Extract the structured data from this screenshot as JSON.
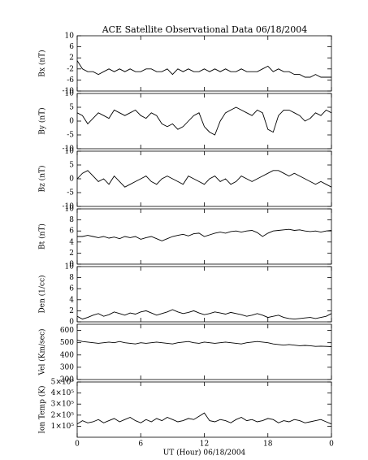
{
  "chart_data": [
    {
      "type": "line",
      "title": "ACE Satellite Observational Data   06/18/2004",
      "ylabel": "Bx (nT)",
      "x": [
        0,
        0.5,
        1,
        1.5,
        2,
        2.5,
        3,
        3.5,
        4,
        4.5,
        5,
        5.5,
        6,
        6.5,
        7,
        7.5,
        8,
        8.5,
        9,
        9.5,
        10,
        10.5,
        11,
        11.5,
        12,
        12.5,
        13,
        13.5,
        14,
        14.5,
        15,
        15.5,
        16,
        16.5,
        17,
        17.5,
        18,
        18.5,
        19,
        19.5,
        20,
        20.5,
        21,
        21.5,
        22,
        22.5,
        23,
        23.5,
        24
      ],
      "ylim": [
        -10,
        10
      ],
      "yticks": [
        -10,
        -6,
        -2,
        2,
        6,
        10
      ],
      "series": [
        {
          "color": "#000000",
          "values": [
            1,
            -2,
            -3,
            -3,
            -4,
            -3,
            -2,
            -3,
            -2,
            -3,
            -2,
            -3,
            -3,
            -2,
            -2,
            -3,
            -3,
            -2,
            -4,
            -2,
            -3,
            -2,
            -3,
            -3,
            -2,
            -3,
            -2,
            -3,
            -2,
            -3,
            -3,
            -2,
            -3,
            -3,
            -3,
            -2,
            -1,
            -3,
            -2,
            -3,
            -3,
            -4,
            -4,
            -5,
            -5,
            -4,
            -5,
            -5,
            -5
          ]
        }
      ]
    },
    {
      "type": "line",
      "ylabel": "By (nT)",
      "ylim": [
        -10,
        10
      ],
      "yticks": [
        -10,
        -5,
        0,
        5,
        10
      ],
      "series": [
        {
          "color": "#000000",
          "values": [
            3,
            2,
            -1,
            1,
            3,
            2,
            1,
            4,
            3,
            2,
            3,
            4,
            2,
            1,
            3,
            2,
            -1,
            -2,
            -1,
            -3,
            -2,
            0,
            2,
            3,
            -2,
            -4,
            -5,
            0,
            3,
            4,
            5,
            4,
            3,
            2,
            4,
            3,
            -3,
            -4,
            2,
            4,
            4,
            3,
            2,
            0,
            1,
            3,
            2,
            4,
            3
          ]
        }
      ]
    },
    {
      "type": "line",
      "ylabel": "Bz (nT)",
      "ylim": [
        -10,
        10
      ],
      "yticks": [
        -10,
        -5,
        0,
        5,
        10
      ],
      "series": [
        {
          "color": "#000000",
          "values": [
            0,
            2,
            3,
            1,
            -1,
            0,
            -2,
            1,
            -1,
            -3,
            -2,
            -1,
            0,
            1,
            -1,
            -2,
            0,
            1,
            0,
            -1,
            -2,
            1,
            0,
            -1,
            -2,
            0,
            1,
            -1,
            0,
            -2,
            -1,
            1,
            0,
            -1,
            0,
            1,
            2,
            3,
            3,
            2,
            1,
            2,
            1,
            0,
            -1,
            -2,
            -1,
            -2,
            -3
          ]
        }
      ]
    },
    {
      "type": "line",
      "ylabel": "Bt (nT)",
      "ylim": [
        0,
        10
      ],
      "yticks": [
        0,
        2,
        4,
        6,
        8,
        10
      ],
      "series": [
        {
          "color": "#000000",
          "values": [
            5,
            5,
            5.2,
            5,
            4.8,
            5,
            4.7,
            4.9,
            4.6,
            5,
            4.8,
            5,
            4.5,
            4.8,
            5,
            4.6,
            4.2,
            4.6,
            5,
            5.2,
            5.4,
            5.1,
            5.5,
            5.6,
            5,
            5.3,
            5.6,
            5.8,
            5.6,
            5.9,
            6,
            5.8,
            6,
            6.1,
            5.7,
            5,
            5.6,
            6,
            6.1,
            6.2,
            6.3,
            6.1,
            6.2,
            6,
            5.9,
            6,
            5.8,
            6,
            6.1
          ]
        }
      ]
    },
    {
      "type": "line",
      "ylabel": "Den (1/cc)",
      "ylim": [
        0,
        10
      ],
      "yticks": [
        0,
        2,
        4,
        6,
        8,
        10
      ],
      "series": [
        {
          "color": "#000000",
          "values": [
            1,
            0.5,
            0.8,
            1.2,
            1.5,
            1,
            1.3,
            1.8,
            1.5,
            1.2,
            1.6,
            1.4,
            1.8,
            2,
            1.6,
            1.2,
            1.5,
            1.8,
            2.2,
            1.8,
            1.5,
            1.7,
            2,
            1.6,
            1.3,
            1.5,
            1.8,
            1.6,
            1.4,
            1.7,
            1.5,
            1.3,
            1,
            1.2,
            1.5,
            1.2,
            0.8,
            1,
            1.2,
            0.8,
            0.6,
            0.5,
            0.6,
            0.7,
            0.8,
            0.6,
            0.8,
            1,
            1.5
          ]
        }
      ]
    },
    {
      "type": "line",
      "ylabel": "Vel (Km/sec)",
      "ylim": [
        200,
        650
      ],
      "yticks": [
        200,
        300,
        400,
        500,
        600
      ],
      "series": [
        {
          "color": "#000000",
          "values": [
            520,
            510,
            505,
            500,
            495,
            500,
            505,
            500,
            510,
            500,
            495,
            490,
            500,
            495,
            500,
            505,
            500,
            495,
            490,
            500,
            505,
            510,
            500,
            495,
            505,
            500,
            495,
            500,
            505,
            500,
            495,
            490,
            500,
            505,
            510,
            505,
            500,
            490,
            485,
            480,
            485,
            480,
            475,
            478,
            475,
            470,
            472,
            470,
            468
          ]
        }
      ]
    },
    {
      "type": "line",
      "ylabel": "Ion Temp (K)",
      "ylim": [
        0,
        500000
      ],
      "yticks": [
        {
          "value": 100000,
          "label": "1×10⁵"
        },
        {
          "value": 200000,
          "label": "2×10⁵"
        },
        {
          "value": 300000,
          "label": "3×10⁵"
        },
        {
          "value": 400000,
          "label": "4×10⁵"
        },
        {
          "value": 500000,
          "label": "5×10⁵"
        }
      ],
      "xlabel": "UT (Hour)   06/18/2004",
      "xticks": [
        0,
        6,
        12,
        18,
        {
          "value": 24,
          "label": "0"
        }
      ],
      "series": [
        {
          "color": "#000000",
          "values": [
            120000,
            150000,
            130000,
            140000,
            160000,
            130000,
            150000,
            170000,
            140000,
            160000,
            180000,
            150000,
            130000,
            160000,
            140000,
            170000,
            150000,
            180000,
            160000,
            140000,
            150000,
            170000,
            160000,
            190000,
            220000,
            150000,
            140000,
            160000,
            150000,
            130000,
            160000,
            180000,
            150000,
            160000,
            140000,
            150000,
            170000,
            160000,
            130000,
            150000,
            140000,
            160000,
            150000,
            130000,
            140000,
            150000,
            160000,
            140000,
            120000
          ]
        }
      ]
    }
  ]
}
